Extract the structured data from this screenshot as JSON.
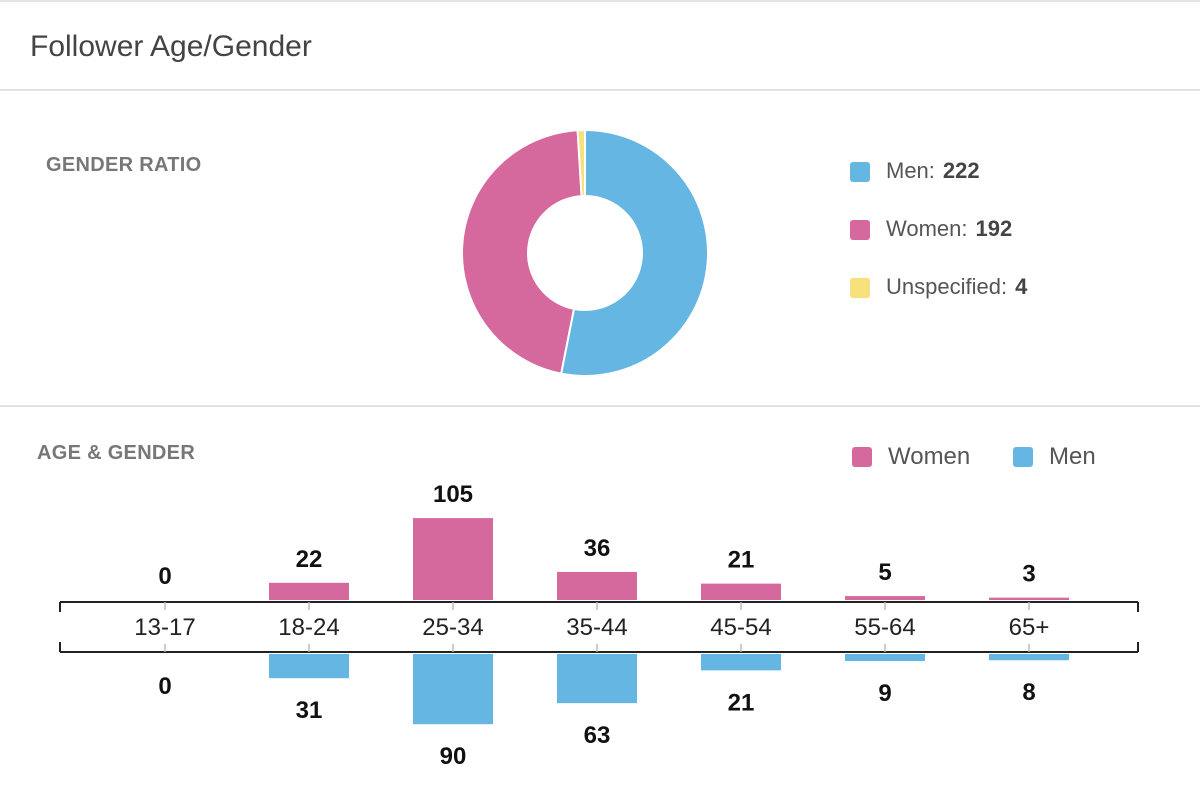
{
  "header": {
    "title": "Follower Age/Gender"
  },
  "gender_section": {
    "label": "GENDER RATIO",
    "legend": [
      {
        "name": "Men:",
        "value": "222",
        "color": "#65b6e3"
      },
      {
        "name": "Women:",
        "value": "192",
        "color": "#d5689c"
      },
      {
        "name": "Unspecified:",
        "value": "4",
        "color": "#f8e07c"
      }
    ]
  },
  "age_section": {
    "label": "AGE & GENDER",
    "legend": [
      {
        "name": "Women",
        "color": "#d5689c"
      },
      {
        "name": "Men",
        "color": "#65b6e3"
      }
    ]
  },
  "chart_data": [
    {
      "type": "pie",
      "variant": "donut",
      "title": "GENDER RATIO",
      "categories": [
        "Men",
        "Women",
        "Unspecified"
      ],
      "values": [
        222,
        192,
        4
      ],
      "colors": [
        "#65b6e3",
        "#d5689c",
        "#f8e07c"
      ],
      "legend_position": "right"
    },
    {
      "type": "bar",
      "variant": "diverging",
      "title": "AGE & GENDER",
      "categories": [
        "13-17",
        "18-24",
        "25-34",
        "35-44",
        "45-54",
        "55-64",
        "65+"
      ],
      "series": [
        {
          "name": "Women",
          "values": [
            0,
            22,
            105,
            36,
            21,
            5,
            3
          ],
          "color": "#d5689c",
          "direction": "up"
        },
        {
          "name": "Men",
          "values": [
            0,
            31,
            90,
            63,
            21,
            9,
            8
          ],
          "color": "#65b6e3",
          "direction": "down"
        }
      ],
      "legend_position": "top-right",
      "grid": false
    }
  ]
}
